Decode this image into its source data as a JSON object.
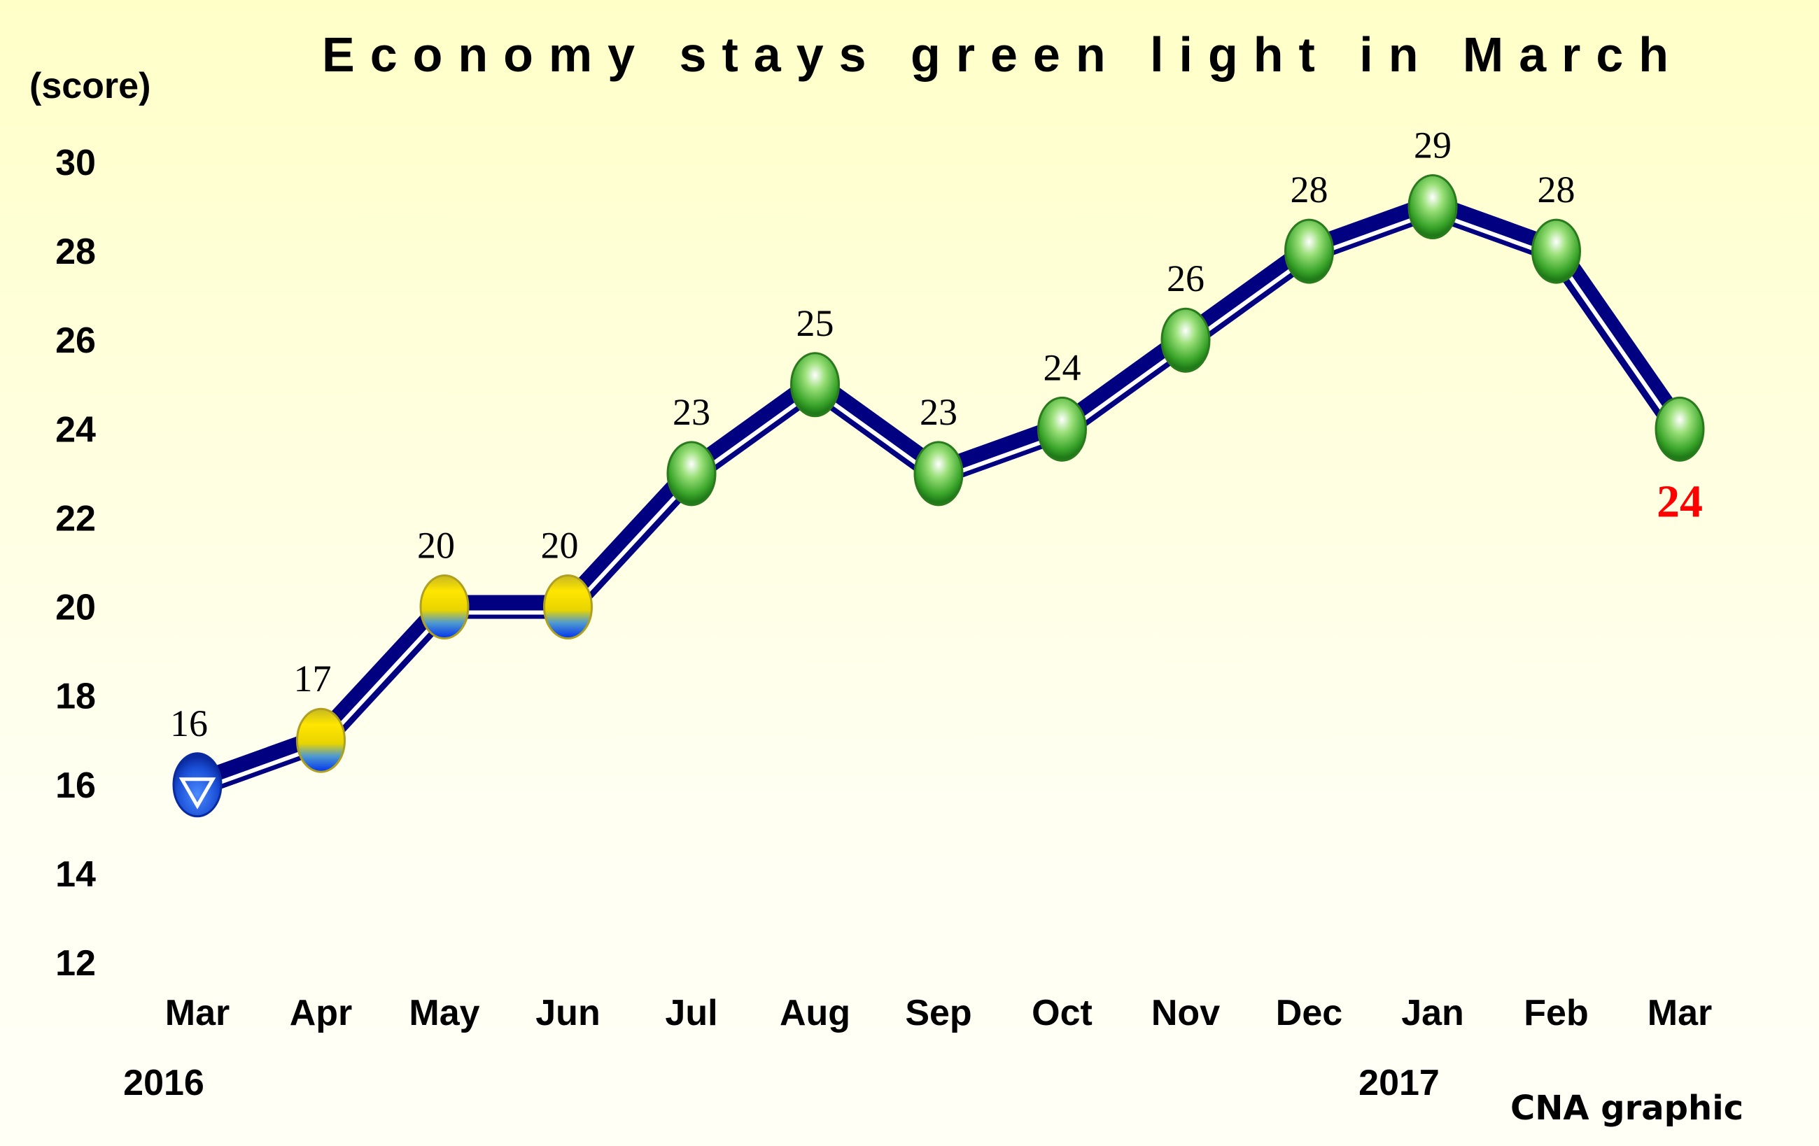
{
  "chart_data": {
    "type": "line",
    "title": "Economy stays green light in March",
    "ylabel": "(score)",
    "ylim": [
      12,
      30
    ],
    "yticks": [
      12,
      14,
      16,
      18,
      20,
      22,
      24,
      26,
      28,
      30
    ],
    "categories": [
      "Mar",
      "Apr",
      "May",
      "Jun",
      "Jul",
      "Aug",
      "Sep",
      "Oct",
      "Nov",
      "Dec",
      "Jan",
      "Feb",
      "Mar"
    ],
    "year_labels": [
      {
        "index": 0,
        "label": "2016"
      },
      {
        "index": 10,
        "label": "2017"
      }
    ],
    "values": [
      16,
      17,
      20,
      20,
      23,
      25,
      23,
      24,
      26,
      28,
      29,
      28,
      24
    ],
    "signals": [
      "blue",
      "yellow-blue",
      "yellow-blue",
      "yellow-blue",
      "green",
      "green",
      "green",
      "green",
      "green",
      "green",
      "green",
      "green",
      "green"
    ],
    "grid": false,
    "legend": "none",
    "highlight_last_label_color": "#ff0000",
    "line_color": "#000080"
  },
  "credit": "CNA graphic"
}
